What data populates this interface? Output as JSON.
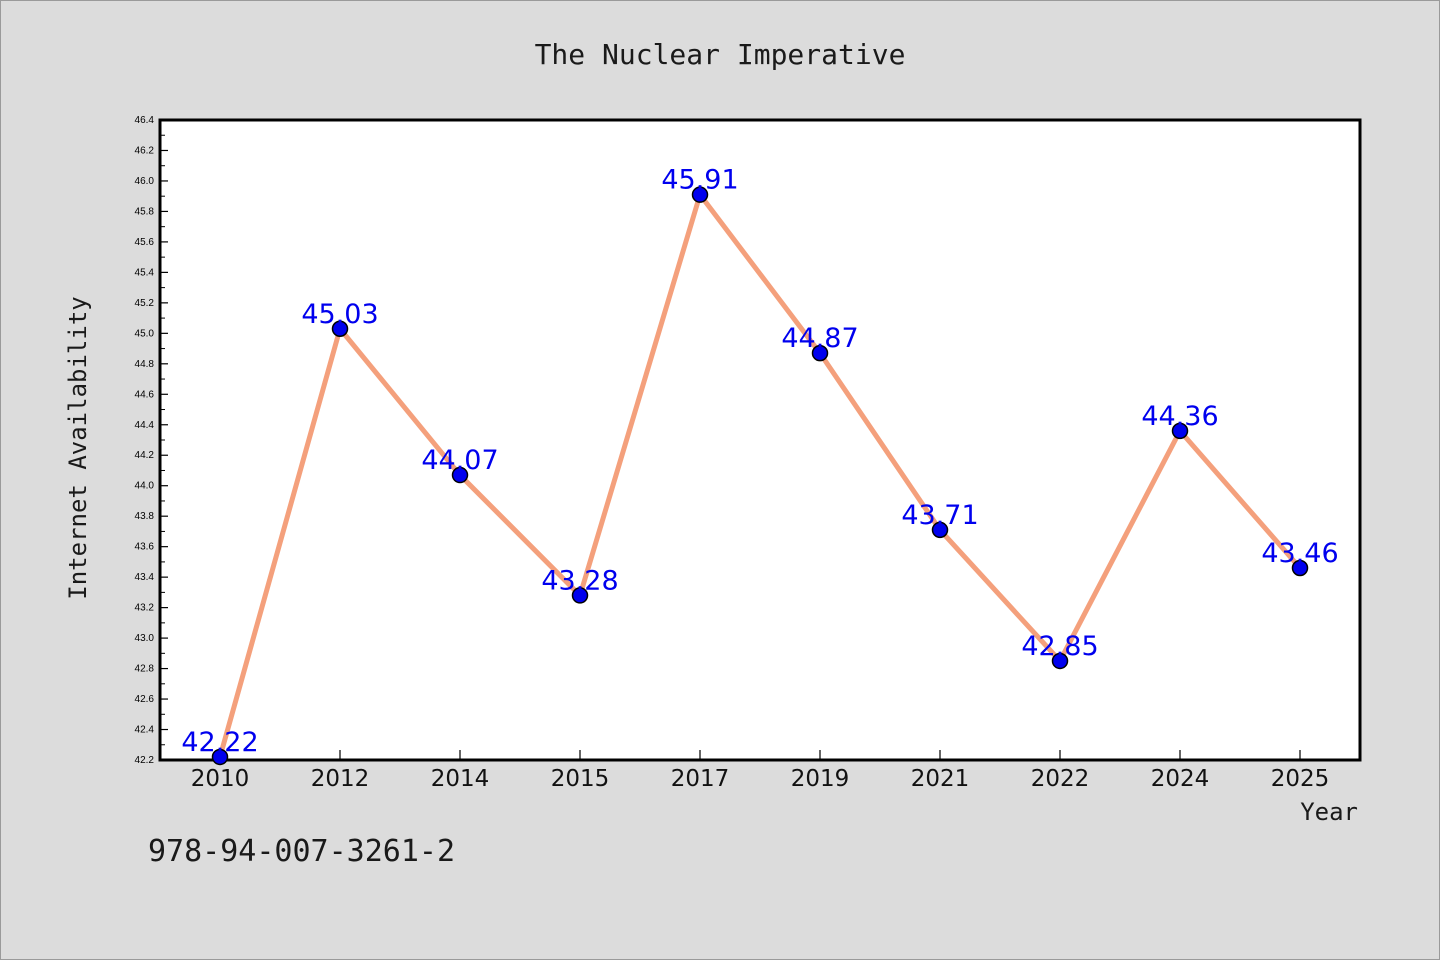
{
  "chart_data": {
    "type": "line",
    "title": "The Nuclear Imperative",
    "xlabel": "Year",
    "ylabel": "Internet Availability",
    "categories": [
      "2010",
      "2012",
      "2014",
      "2015",
      "2017",
      "2019",
      "2021",
      "2022",
      "2024",
      "2025"
    ],
    "values": [
      42.22,
      45.03,
      44.07,
      43.28,
      45.91,
      44.87,
      43.71,
      42.85,
      44.36,
      43.46
    ],
    "data_labels": [
      "42.22",
      "45.03",
      "44.07",
      "43.28",
      "45.91",
      "44.87",
      "43.71",
      "42.85",
      "44.36",
      "43.46"
    ],
    "ylim": [
      42.2,
      46.4
    ],
    "yticks": [
      "42.2",
      "42.4",
      "42.6",
      "42.8",
      "43.0",
      "43.2",
      "43.4",
      "43.6",
      "43.8",
      "44.0",
      "44.2",
      "44.4",
      "44.6",
      "44.8",
      "45.0",
      "45.2",
      "45.4",
      "45.6",
      "45.8",
      "46.0",
      "46.2",
      "46.4"
    ],
    "grid": false,
    "line_color": "#f4a07c",
    "marker_color": "#0000ee",
    "label_color": "#0000ee",
    "background": "#dcdcdc",
    "plot_background": "#ffffff"
  },
  "footer": {
    "isbn": "978-94-007-3261-2"
  }
}
